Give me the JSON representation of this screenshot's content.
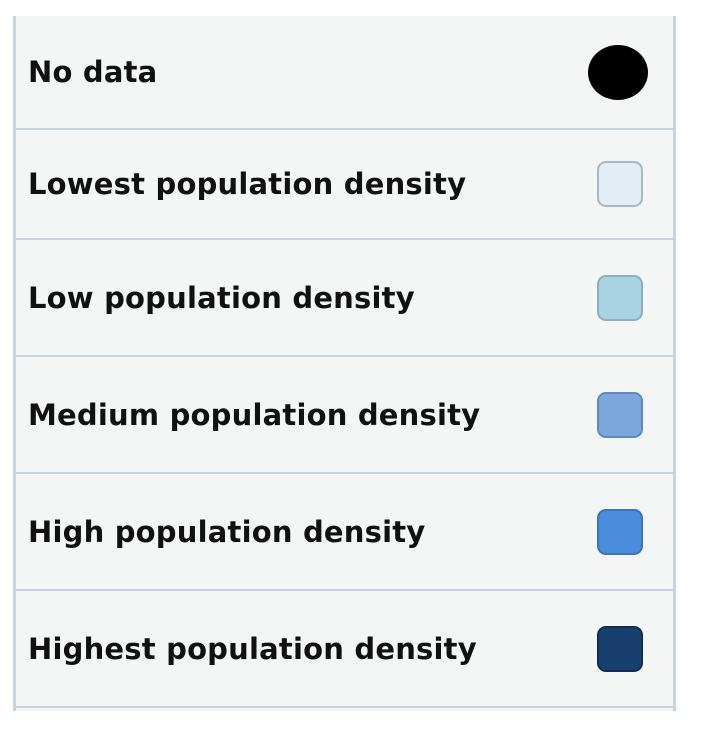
{
  "legend": {
    "items": [
      {
        "label": "No data",
        "swatch_color": "#000000",
        "swatch_border": "#000000",
        "shape": "circle"
      },
      {
        "label": "Lowest population density",
        "swatch_color": "#e2eef3",
        "swatch_border": "#a6b8c2",
        "shape": "square"
      },
      {
        "label": "Low population density",
        "swatch_color": "#a9d2e2",
        "swatch_border": "#8ab0c2",
        "shape": "square"
      },
      {
        "label": "Medium population density",
        "swatch_color": "#7ba7dc",
        "swatch_border": "#5f89bd",
        "shape": "square"
      },
      {
        "label": "High population density",
        "swatch_color": "#4a8ddc",
        "swatch_border": "#3a74ba",
        "shape": "square"
      },
      {
        "label": "Highest population density",
        "swatch_color": "#183f6e",
        "swatch_border": "#102d52",
        "shape": "square"
      }
    ]
  }
}
